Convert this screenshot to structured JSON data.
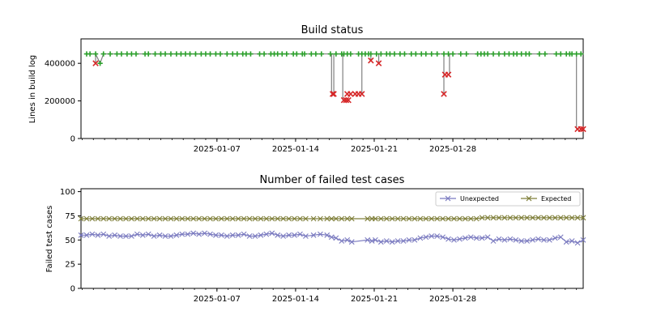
{
  "chart_data": [
    {
      "type": "line",
      "title": "Build status",
      "xlabel": "",
      "ylabel": "Lines in build log",
      "xlim": [
        -5.1,
        39.6
      ],
      "ylim": [
        0,
        530000
      ],
      "x_tick_labels": [
        "2025-01-07",
        "2025-01-14",
        "2025-01-21",
        "2025-01-28"
      ],
      "x_tick_positions": [
        7,
        14,
        21,
        28
      ],
      "y_ticks": [
        0,
        200000,
        400000
      ],
      "y_tick_labels": [
        "0",
        "200000",
        "400000"
      ],
      "status_colors": {
        "pass": "#2ca02c",
        "fail": "#d62728",
        "line": "#808080"
      },
      "series": [
        {
          "name": "Build log lines",
          "x": [
            -4.6,
            -4.3,
            -3.8,
            -3.4,
            -3.1,
            -2.5,
            -1.9,
            -1.5,
            -1.0,
            -0.6,
            -0.2,
            0.6,
            0.9,
            1.5,
            2.0,
            2.4,
            2.9,
            3.4,
            3.8,
            4.2,
            4.6,
            5.1,
            5.6,
            6.0,
            6.4,
            6.9,
            7.3,
            7.9,
            8.4,
            8.8,
            9.3,
            9.6,
            10.0,
            10.8,
            11.2,
            11.8,
            12.1,
            12.4,
            12.8,
            13.2,
            13.8,
            14.1,
            14.6,
            14.8,
            15.4,
            15.8,
            16.3,
            17.1,
            17.6,
            18.1,
            18.3,
            18.6,
            18.9,
            19.6,
            19.9,
            20.2,
            20.5,
            20.7,
            21.2,
            21.6,
            22.1,
            22.4,
            22.8,
            23.3,
            23.7,
            24.3,
            24.7,
            25.2,
            25.6,
            26.1,
            26.6,
            27.2,
            27.6,
            28.0,
            28.7,
            29.2,
            30.2,
            30.5,
            30.8,
            31.1,
            31.6,
            32.1,
            32.6,
            33.0,
            33.4,
            33.7,
            34.1,
            34.5,
            34.8,
            35.7,
            36.2,
            37.2,
            37.6,
            38.1,
            38.4,
            38.6,
            39.0,
            39.4
          ],
          "y": [
            450000,
            450000,
            450000,
            400000,
            450000,
            450000,
            450000,
            450000,
            450000,
            450000,
            450000,
            450000,
            450000,
            450000,
            450000,
            450000,
            450000,
            450000,
            450000,
            450000,
            450000,
            450000,
            450000,
            450000,
            450000,
            450000,
            450000,
            450000,
            450000,
            450000,
            450000,
            450000,
            450000,
            450000,
            450000,
            450000,
            450000,
            450000,
            450000,
            450000,
            450000,
            450000,
            450000,
            450000,
            450000,
            450000,
            450000,
            450000,
            450000,
            450000,
            450000,
            450000,
            450000,
            450000,
            450000,
            450000,
            450000,
            450000,
            450000,
            450000,
            450000,
            450000,
            450000,
            450000,
            450000,
            450000,
            450000,
            450000,
            450000,
            450000,
            450000,
            450000,
            450000,
            450000,
            450000,
            450000,
            450000,
            450000,
            450000,
            450000,
            450000,
            450000,
            450000,
            450000,
            450000,
            450000,
            450000,
            450000,
            450000,
            450000,
            450000,
            450000,
            450000,
            450000,
            450000,
            450000,
            450000,
            450000
          ],
          "status": []
        }
      ],
      "failed_builds": [
        {
          "x": -3.8,
          "y": 400000
        },
        {
          "x": 17.3,
          "y": 237000
        },
        {
          "x": 17.4,
          "y": 237000
        },
        {
          "x": 18.3,
          "y": 204000
        },
        {
          "x": 18.5,
          "y": 204000
        },
        {
          "x": 18.7,
          "y": 204000
        },
        {
          "x": 18.6,
          "y": 237000
        },
        {
          "x": 18.9,
          "y": 237000
        },
        {
          "x": 19.3,
          "y": 237000
        },
        {
          "x": 19.6,
          "y": 237000
        },
        {
          "x": 19.9,
          "y": 237000
        },
        {
          "x": 20.7,
          "y": 415000
        },
        {
          "x": 21.4,
          "y": 400000
        },
        {
          "x": 27.2,
          "y": 237000
        },
        {
          "x": 27.3,
          "y": 340000
        },
        {
          "x": 27.6,
          "y": 340000
        },
        {
          "x": 39.1,
          "y": 50000
        },
        {
          "x": 39.4,
          "y": 50000
        },
        {
          "x": 39.6,
          "y": 50000
        }
      ],
      "drop_segments": [
        {
          "x": -3.8,
          "from": 450000,
          "to": 400000
        },
        {
          "x": 17.2,
          "from": 450000,
          "to": 237000
        },
        {
          "x": 17.4,
          "from": 450000,
          "to": 237000
        },
        {
          "x": 18.2,
          "from": 450000,
          "to": 204000
        },
        {
          "x": 19.9,
          "from": 450000,
          "to": 237000
        },
        {
          "x": 20.7,
          "from": 450000,
          "to": 415000
        },
        {
          "x": 21.4,
          "from": 450000,
          "to": 400000
        },
        {
          "x": 27.2,
          "from": 450000,
          "to": 237000
        },
        {
          "x": 27.7,
          "from": 450000,
          "to": 340000
        },
        {
          "x": 39.0,
          "from": 450000,
          "to": 50000
        }
      ]
    },
    {
      "type": "line",
      "title": "Number of failed test cases",
      "xlabel": "",
      "ylabel": "Failed test cases",
      "xlim": [
        -5.1,
        39.6
      ],
      "ylim": [
        0,
        103
      ],
      "x_tick_labels": [
        "2025-01-07",
        "2025-01-14",
        "2025-01-21",
        "2025-01-28"
      ],
      "x_tick_positions": [
        7,
        14,
        21,
        28
      ],
      "y_ticks": [
        0,
        25,
        50,
        75,
        100
      ],
      "y_tick_labels": [
        "0",
        "25",
        "50",
        "75",
        "100"
      ],
      "legend_position": "top-right",
      "series": [
        {
          "name": "Unexpected",
          "color": "#7b7bc0",
          "x": [
            -5.1,
            -4.6,
            -4.1,
            -3.6,
            -3.1,
            -2.6,
            -2.1,
            -1.6,
            -1.1,
            -0.6,
            -0.1,
            0.4,
            0.9,
            1.4,
            1.9,
            2.4,
            2.9,
            3.4,
            3.9,
            4.4,
            4.9,
            5.4,
            5.9,
            6.4,
            6.9,
            7.4,
            7.9,
            8.4,
            8.9,
            9.4,
            9.9,
            10.4,
            10.9,
            11.4,
            11.9,
            12.4,
            12.9,
            13.4,
            13.9,
            14.4,
            14.9,
            15.6,
            16.2,
            16.8,
            17.2,
            17.6,
            18.1,
            18.6,
            19.0,
            20.4,
            20.8,
            21.1,
            21.6,
            22.1,
            22.6,
            23.1,
            23.6,
            24.1,
            24.6,
            25.1,
            25.6,
            26.1,
            26.6,
            27.1,
            27.6,
            28.1,
            28.6,
            29.1,
            29.6,
            30.1,
            30.6,
            31.1,
            31.6,
            32.1,
            32.6,
            33.1,
            33.6,
            34.1,
            34.6,
            35.1,
            35.6,
            36.1,
            36.6,
            37.1,
            37.6,
            38.1,
            38.6,
            39.1,
            39.6
          ],
          "y": [
            55,
            55,
            56,
            55,
            56,
            54,
            55,
            54,
            54,
            54,
            56,
            55,
            56,
            54,
            55,
            54,
            54,
            55,
            56,
            56,
            57,
            56,
            57,
            56,
            55,
            55,
            54,
            55,
            55,
            56,
            54,
            54,
            55,
            56,
            57,
            55,
            54,
            55,
            55,
            56,
            54,
            55,
            56,
            55,
            53,
            52,
            49,
            50,
            48,
            50,
            49,
            50,
            48,
            49,
            48,
            49,
            49,
            50,
            50,
            52,
            53,
            54,
            54,
            53,
            51,
            50,
            51,
            52,
            53,
            52,
            52,
            53,
            49,
            51,
            50,
            51,
            50,
            49,
            49,
            50,
            51,
            50,
            50,
            52,
            53,
            48,
            49,
            47,
            50
          ],
          "marker": "x"
        },
        {
          "name": "Expected",
          "color": "#7f7f3a",
          "x": [
            -5.1,
            -4.6,
            -4.1,
            -3.6,
            -3.1,
            -2.6,
            -2.1,
            -1.6,
            -1.1,
            -0.6,
            -0.1,
            0.4,
            0.9,
            1.4,
            1.9,
            2.4,
            2.9,
            3.4,
            3.9,
            4.4,
            4.9,
            5.4,
            5.9,
            6.4,
            6.9,
            7.4,
            7.9,
            8.4,
            8.9,
            9.4,
            9.9,
            10.4,
            10.9,
            11.4,
            11.9,
            12.4,
            12.9,
            13.4,
            13.9,
            14.4,
            14.9,
            15.6,
            16.2,
            16.8,
            17.2,
            17.6,
            18.1,
            18.6,
            19.0,
            20.4,
            20.8,
            21.1,
            21.6,
            22.1,
            22.6,
            23.1,
            23.6,
            24.1,
            24.6,
            25.1,
            25.6,
            26.1,
            26.6,
            27.1,
            27.6,
            28.1,
            28.6,
            29.1,
            29.6,
            30.1,
            30.6,
            31.1,
            31.6,
            32.1,
            32.6,
            33.1,
            33.6,
            34.1,
            34.6,
            35.1,
            35.6,
            36.1,
            36.6,
            37.1,
            37.6,
            38.1,
            38.6,
            39.1,
            39.6
          ],
          "y": [
            72,
            72,
            72,
            72,
            72,
            72,
            72,
            72,
            72,
            72,
            72,
            72,
            72,
            72,
            72,
            72,
            72,
            72,
            72,
            72,
            72,
            72,
            72,
            72,
            72,
            72,
            72,
            72,
            72,
            72,
            72,
            72,
            72,
            72,
            72,
            72,
            72,
            72,
            72,
            72,
            72,
            72,
            72,
            72,
            72,
            72,
            72,
            72,
            72,
            72,
            72,
            72,
            72,
            72,
            72,
            72,
            72,
            72,
            72,
            72,
            72,
            72,
            72,
            72,
            72,
            72,
            72,
            72,
            72,
            72,
            73,
            73,
            73,
            73,
            73,
            73,
            73,
            73,
            73,
            73,
            73,
            73,
            73,
            73,
            73,
            73,
            73,
            73,
            73
          ],
          "marker": "x"
        }
      ]
    }
  ]
}
